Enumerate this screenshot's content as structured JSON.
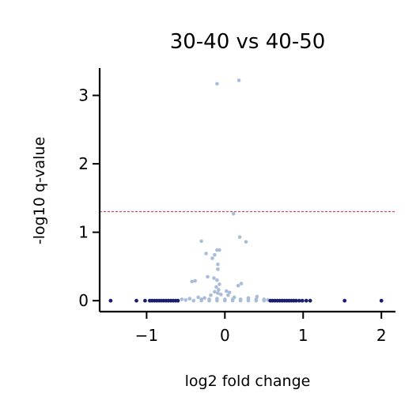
{
  "chart_data": {
    "type": "scatter",
    "title": "30-40 vs 40-50",
    "xlabel": "log2 fold change",
    "ylabel": "-log10 q-value",
    "xlim": [
      -1.6,
      2.18
    ],
    "ylim": [
      -0.16,
      3.4
    ],
    "xticks": [
      -1,
      0,
      1,
      2
    ],
    "xtick_labels": [
      "−1",
      "0",
      "1",
      "2"
    ],
    "yticks": [
      0,
      1,
      2,
      3
    ],
    "ytick_labels": [
      "0",
      "1",
      "2",
      "3"
    ],
    "threshold_y": 1.3,
    "colors": {
      "threshold_line": "#c0303a",
      "non_significant": "#a9bdd8",
      "large_change": "#1a1f6b",
      "axis": "#000000"
    },
    "grid": false,
    "legend": "none",
    "series": [
      {
        "points": [
          [
            -0.1,
            3.17
          ],
          [
            0.18,
            3.22
          ],
          [
            0.11,
            1.27
          ],
          [
            -0.3,
            0.87
          ],
          [
            0.19,
            0.93
          ],
          [
            0.27,
            0.86
          ],
          [
            -0.1,
            0.74
          ],
          [
            -0.07,
            0.74
          ],
          [
            -0.24,
            0.69
          ],
          [
            -0.13,
            0.67
          ],
          [
            -0.16,
            0.62
          ],
          [
            -0.09,
            0.53
          ],
          [
            -0.09,
            0.46
          ],
          [
            -0.22,
            0.35
          ],
          [
            -0.14,
            0.33
          ],
          [
            0.21,
            0.25
          ],
          [
            0.17,
            0.22
          ],
          [
            -0.38,
            0.29
          ],
          [
            -0.42,
            0.28
          ],
          [
            -0.1,
            0.3
          ],
          [
            -0.07,
            0.24
          ],
          [
            -0.11,
            0.2
          ],
          [
            -0.08,
            0.16
          ],
          [
            -0.13,
            0.13
          ],
          [
            -0.09,
            0.11
          ],
          [
            0.02,
            0.14
          ],
          [
            0.06,
            0.12
          ],
          [
            -0.05,
            0.09
          ],
          [
            0.04,
            0.08
          ],
          [
            0.41,
            0.06
          ],
          [
            -0.34,
            0.05
          ],
          [
            -0.18,
            0.08
          ],
          [
            0.12,
            0.05
          ],
          [
            -0.26,
            0.04
          ],
          [
            0.3,
            0.04
          ],
          [
            -0.55,
            0.02
          ],
          [
            -0.45,
            0.03
          ],
          [
            -0.3,
            0.02
          ],
          [
            -0.2,
            0.02
          ],
          [
            -0.1,
            0.03
          ],
          [
            0.0,
            0.02
          ],
          [
            0.1,
            0.02
          ],
          [
            0.2,
            0.02
          ],
          [
            0.3,
            0.02
          ],
          [
            0.4,
            0.02
          ],
          [
            0.5,
            0.02
          ],
          [
            0.55,
            0.01
          ],
          [
            -0.5,
            0.01
          ],
          [
            -0.4,
            0.0
          ],
          [
            -0.3,
            0.0
          ],
          [
            -0.2,
            0.0
          ],
          [
            -0.1,
            0.0
          ],
          [
            0.0,
            0.0
          ],
          [
            0.1,
            0.0
          ],
          [
            0.2,
            0.0
          ],
          [
            0.3,
            0.0
          ],
          [
            0.4,
            0.0
          ],
          [
            0.5,
            0.0
          ],
          [
            -0.6,
            0.0
          ],
          [
            0.6,
            0.0
          ]
        ]
      },
      {
        "points": [
          [
            -1.46,
            0.0
          ],
          [
            -1.13,
            0.0
          ],
          [
            -1.02,
            0.0
          ],
          [
            -0.96,
            0.0
          ],
          [
            -0.93,
            0.0
          ],
          [
            -0.9,
            0.0
          ],
          [
            -0.87,
            0.0
          ],
          [
            -0.84,
            0.0
          ],
          [
            -0.81,
            0.0
          ],
          [
            -0.78,
            0.0
          ],
          [
            -0.75,
            0.0
          ],
          [
            -0.72,
            0.0
          ],
          [
            -0.69,
            0.0
          ],
          [
            -0.66,
            0.0
          ],
          [
            -0.63,
            0.0
          ],
          [
            -0.6,
            0.0
          ],
          [
            0.58,
            0.0
          ],
          [
            0.61,
            0.0
          ],
          [
            0.64,
            0.0
          ],
          [
            0.67,
            0.0
          ],
          [
            0.7,
            0.0
          ],
          [
            0.73,
            0.0
          ],
          [
            0.76,
            0.0
          ],
          [
            0.79,
            0.0
          ],
          [
            0.82,
            0.0
          ],
          [
            0.85,
            0.0
          ],
          [
            0.88,
            0.0
          ],
          [
            0.91,
            0.0
          ],
          [
            0.95,
            0.0
          ],
          [
            0.99,
            0.0
          ],
          [
            1.04,
            0.0
          ],
          [
            1.09,
            0.0
          ],
          [
            1.53,
            0.0
          ],
          [
            2.0,
            0.0
          ]
        ]
      }
    ]
  }
}
